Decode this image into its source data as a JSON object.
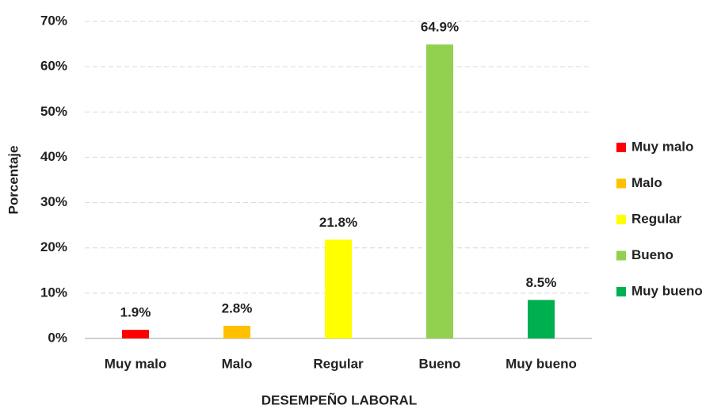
{
  "chart_data": {
    "type": "bar",
    "x_label": "DESEMPEÑO LABORAL",
    "y_label": "Porcentaje",
    "categories": [
      "Muy malo",
      "Malo",
      "Regular",
      "Bueno",
      "Muy bueno"
    ],
    "values": [
      1.9,
      2.8,
      21.8,
      64.9,
      8.5
    ],
    "value_labels": [
      "1.9%",
      "2.8%",
      "21.8%",
      "64.9%",
      "8.5%"
    ],
    "colors": [
      "#ff0000",
      "#ffc000",
      "#ffff00",
      "#92d050",
      "#00b050"
    ],
    "ylim": [
      0,
      70
    ],
    "yticks": [
      {
        "value": 0,
        "label": "0%"
      },
      {
        "value": 10,
        "label": "10%"
      },
      {
        "value": 20,
        "label": "20%"
      },
      {
        "value": 30,
        "label": "30%"
      },
      {
        "value": 40,
        "label": "40%"
      },
      {
        "value": 50,
        "label": "50%"
      },
      {
        "value": 60,
        "label": "60%"
      },
      {
        "value": 70,
        "label": "70%"
      }
    ],
    "grid": true,
    "legend": "right"
  }
}
